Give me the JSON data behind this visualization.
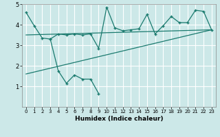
{
  "xlabel": "Humidex (Indice chaleur)",
  "bg_color": "#cce8e8",
  "grid_color": "#b0d0d0",
  "line_color": "#1a7a6e",
  "xlim": [
    -0.5,
    23.5
  ],
  "ylim": [
    0,
    5
  ],
  "xticks": [
    0,
    1,
    2,
    3,
    4,
    5,
    6,
    7,
    8,
    9,
    10,
    11,
    12,
    13,
    14,
    15,
    16,
    17,
    18,
    19,
    20,
    21,
    22,
    23
  ],
  "yticks": [
    1,
    2,
    3,
    4,
    5
  ],
  "series1_x": [
    0,
    1,
    2,
    3,
    4,
    5,
    6,
    7,
    8,
    9,
    10,
    11,
    12,
    13,
    14,
    15,
    16,
    17,
    18,
    19,
    20,
    21,
    22,
    23
  ],
  "series1_y": [
    4.6,
    3.95,
    3.35,
    3.3,
    3.55,
    3.5,
    3.55,
    3.5,
    3.55,
    2.85,
    4.85,
    3.85,
    3.7,
    3.75,
    3.8,
    4.5,
    3.55,
    3.95,
    4.4,
    4.1,
    4.1,
    4.7,
    4.65,
    3.75
  ],
  "series2_x": [
    3,
    4,
    5,
    6,
    7,
    8,
    9
  ],
  "series2_y": [
    3.3,
    1.75,
    1.15,
    1.55,
    1.35,
    1.35,
    0.65
  ],
  "trend1_x": [
    0,
    23
  ],
  "trend1_y": [
    3.5,
    3.75
  ],
  "trend2_x": [
    0,
    23
  ],
  "trend2_y": [
    1.6,
    3.75
  ]
}
